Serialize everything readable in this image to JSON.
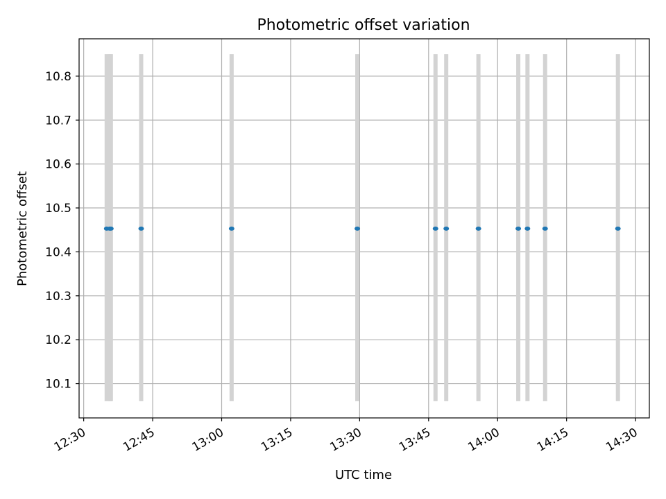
{
  "chart_data": {
    "type": "scatter",
    "title": "Photometric offset variation",
    "xlabel": "UTC time",
    "ylabel": "Photometric offset",
    "x_axis": "time",
    "xlim": [
      "12:29",
      "14:33"
    ],
    "ylim": [
      10.022,
      10.885
    ],
    "x_ticks": [
      "12:30",
      "12:45",
      "13:00",
      "13:15",
      "13:30",
      "13:45",
      "14:00",
      "14:15",
      "14:30"
    ],
    "y_ticks": [
      "10.1",
      "10.2",
      "10.3",
      "10.4",
      "10.5",
      "10.6",
      "10.7",
      "10.8"
    ],
    "grid": true,
    "point_color": "#1f77b4",
    "errorbar_color": "#d3d3d3",
    "errorbar_range": [
      10.06,
      10.85
    ],
    "series": [
      {
        "x": [
          "12:35:00",
          "12:35:40",
          "12:35:55",
          "12:42:30",
          "13:02:10",
          "13:29:30",
          "13:46:30",
          "13:48:50",
          "13:55:50",
          "14:04:30",
          "14:06:30",
          "14:10:20",
          "14:26:10"
        ],
        "y": [
          10.453,
          10.453,
          10.453,
          10.453,
          10.453,
          10.453,
          10.453,
          10.453,
          10.453,
          10.453,
          10.453,
          10.453,
          10.453
        ]
      }
    ]
  }
}
